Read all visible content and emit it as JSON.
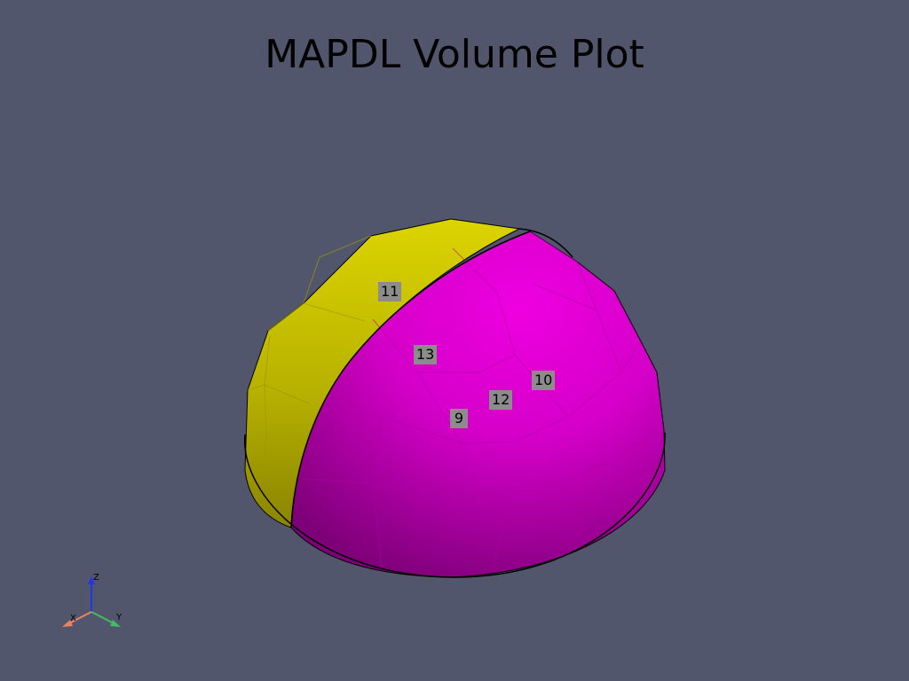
{
  "title": "MAPDL Volume Plot",
  "colors": {
    "background": "#52566d",
    "volume_a": "#d6d000",
    "volume_b": "#e800d8",
    "label_bg": "#8c8c8c"
  },
  "volume_labels": [
    "11",
    "13",
    "10",
    "12",
    "9"
  ],
  "axes": {
    "x": "X",
    "y": "Y",
    "z": "Z"
  }
}
